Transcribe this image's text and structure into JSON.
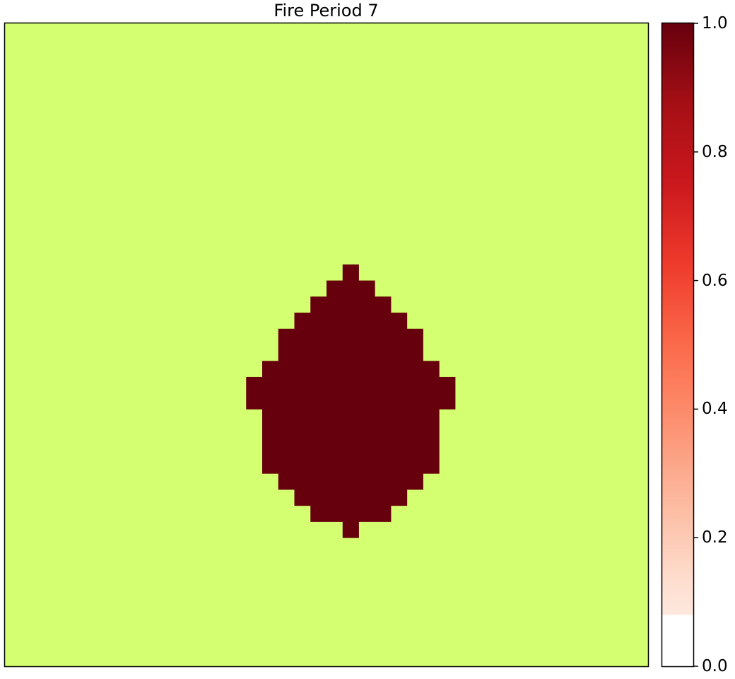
{
  "chart_data": {
    "type": "heatmap",
    "title": "Fire Period 7",
    "grid": false,
    "legend": "colorbar-right",
    "colormap": "Reds",
    "background_color": "#d3ff70",
    "fire_color": "#67000d",
    "colorbar": {
      "range": [
        0.0,
        1.0
      ],
      "ticks": [
        0.0,
        0.2,
        0.4,
        0.6,
        0.8,
        1.0
      ],
      "tick_labels": [
        "0.0",
        "0.2",
        "0.4",
        "0.6",
        "0.8",
        "1.0"
      ]
    },
    "grid_size": [
      40,
      40
    ],
    "burned_rows": [
      {
        "row": 15,
        "col_start": 21,
        "col_end": 21
      },
      {
        "row": 16,
        "col_start": 20,
        "col_end": 22
      },
      {
        "row": 17,
        "col_start": 19,
        "col_end": 23
      },
      {
        "row": 18,
        "col_start": 18,
        "col_end": 24
      },
      {
        "row": 19,
        "col_start": 17,
        "col_end": 25
      },
      {
        "row": 20,
        "col_start": 17,
        "col_end": 25
      },
      {
        "row": 21,
        "col_start": 16,
        "col_end": 26
      },
      {
        "row": 22,
        "col_start": 15,
        "col_end": 27
      },
      {
        "row": 23,
        "col_start": 15,
        "col_end": 27
      },
      {
        "row": 24,
        "col_start": 16,
        "col_end": 26
      },
      {
        "row": 25,
        "col_start": 16,
        "col_end": 26
      },
      {
        "row": 26,
        "col_start": 16,
        "col_end": 26
      },
      {
        "row": 27,
        "col_start": 16,
        "col_end": 26
      },
      {
        "row": 28,
        "col_start": 17,
        "col_end": 25
      },
      {
        "row": 29,
        "col_start": 18,
        "col_end": 24
      },
      {
        "row": 30,
        "col_start": 19,
        "col_end": 23
      },
      {
        "row": 31,
        "col_start": 21,
        "col_end": 21
      }
    ]
  }
}
